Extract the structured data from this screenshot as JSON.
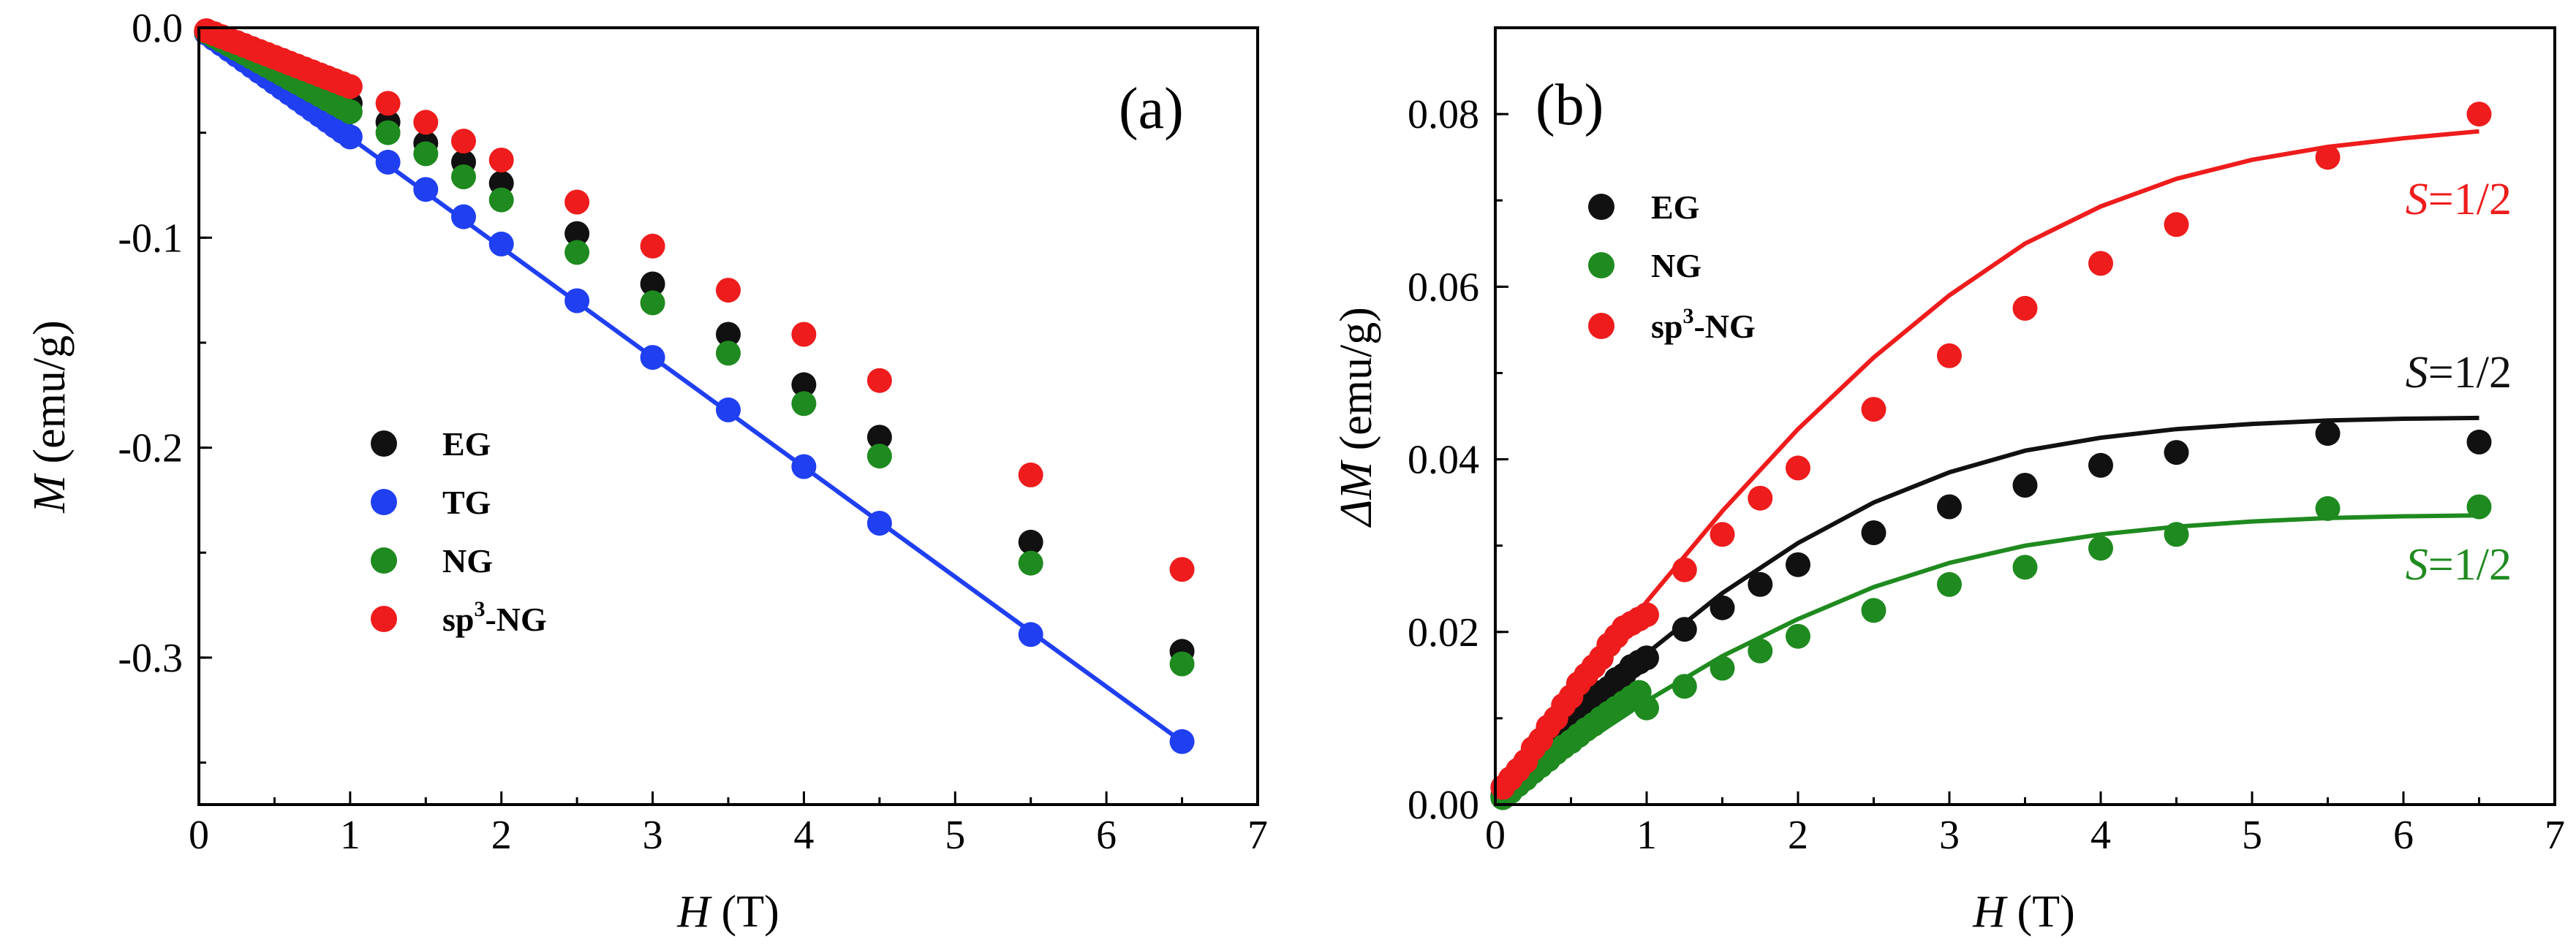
{
  "colors": {
    "EG": "#111111",
    "TG": "#1f3ff0",
    "NG": "#1f8a1f",
    "sp3-NG": "#ee1c1c"
  },
  "chart_data": [
    {
      "type": "scatter",
      "panel": "(a)",
      "xlabel_var": "H",
      "xlabel_unit": " (T)",
      "ylabel_var": "M",
      "ylabel_unit": " (emu/g)",
      "xlim": [
        0,
        7
      ],
      "ylim": [
        -0.37,
        0
      ],
      "xticks": [
        0,
        1,
        2,
        3,
        4,
        5,
        6,
        7
      ],
      "xtick_labels": [
        "0",
        "1",
        "2",
        "3",
        "4",
        "5",
        "6",
        "7"
      ],
      "yticks": [
        0,
        -0.1,
        -0.2,
        -0.3
      ],
      "ytick_labels": [
        "0.0",
        "-0.1",
        "-0.2",
        "-0.3"
      ],
      "legend": {
        "placement": "lower-left",
        "entries": [
          {
            "key": "EG",
            "label": "EG"
          },
          {
            "key": "TG",
            "label": "TG"
          },
          {
            "key": "NG",
            "label": "NG"
          },
          {
            "key": "sp3-NG",
            "label_pre": "sp",
            "label_sup": "3",
            "label_post": "-NG"
          }
        ]
      },
      "x": [
        0.05,
        0.1,
        0.15,
        0.2,
        0.25,
        0.3,
        0.35,
        0.4,
        0.45,
        0.5,
        0.55,
        0.6,
        0.65,
        0.7,
        0.75,
        0.8,
        0.85,
        0.9,
        0.95,
        1.0,
        1.25,
        1.5,
        1.75,
        2.0,
        2.5,
        3.0,
        3.5,
        4.0,
        4.5,
        5.5,
        6.5
      ],
      "series": [
        {
          "name": "EG",
          "key": "EG",
          "values": [
            -0.0018,
            -0.0036,
            -0.0054,
            -0.0072,
            -0.009,
            -0.0108,
            -0.0126,
            -0.0144,
            -0.0162,
            -0.018,
            -0.0198,
            -0.0216,
            -0.0234,
            -0.0252,
            -0.027,
            -0.0288,
            -0.0306,
            -0.0324,
            -0.0342,
            -0.036,
            -0.045,
            -0.055,
            -0.064,
            -0.074,
            -0.098,
            -0.122,
            -0.146,
            -0.17,
            -0.195,
            -0.245,
            -0.297
          ]
        },
        {
          "name": "TG",
          "key": "TG",
          "values": [
            -0.0026,
            -0.0052,
            -0.0078,
            -0.0104,
            -0.013,
            -0.0156,
            -0.0182,
            -0.0208,
            -0.0234,
            -0.026,
            -0.0286,
            -0.0312,
            -0.0338,
            -0.0364,
            -0.039,
            -0.0416,
            -0.0442,
            -0.0468,
            -0.0494,
            -0.052,
            -0.064,
            -0.077,
            -0.09,
            -0.103,
            -0.13,
            -0.157,
            -0.182,
            -0.209,
            -0.236,
            -0.289,
            -0.34
          ]
        },
        {
          "name": "NG",
          "key": "NG",
          "values": [
            -0.002,
            -0.004,
            -0.006,
            -0.008,
            -0.01,
            -0.012,
            -0.014,
            -0.016,
            -0.018,
            -0.02,
            -0.022,
            -0.024,
            -0.026,
            -0.028,
            -0.03,
            -0.032,
            -0.034,
            -0.036,
            -0.038,
            -0.04,
            -0.05,
            -0.06,
            -0.071,
            -0.082,
            -0.107,
            -0.131,
            -0.155,
            -0.179,
            -0.204,
            -0.255,
            -0.303
          ]
        },
        {
          "name": "sp3-NG",
          "key": "sp3-NG",
          "values": [
            -0.0014,
            -0.0028,
            -0.0042,
            -0.0056,
            -0.007,
            -0.0084,
            -0.0098,
            -0.0112,
            -0.0126,
            -0.014,
            -0.0154,
            -0.0168,
            -0.0182,
            -0.0196,
            -0.021,
            -0.0224,
            -0.0238,
            -0.0252,
            -0.0266,
            -0.028,
            -0.036,
            -0.045,
            -0.054,
            -0.063,
            -0.083,
            -0.104,
            -0.125,
            -0.146,
            -0.168,
            -0.213,
            -0.258
          ]
        }
      ],
      "fit_lines": [
        {
          "series": "TG",
          "x": [
            0,
            6.5
          ],
          "y": [
            0,
            -0.34
          ]
        }
      ]
    },
    {
      "type": "scatter",
      "panel": "(b)",
      "xlabel_var": "H",
      "xlabel_unit": " (T)",
      "ylabel_var": "ΔM",
      "ylabel_unit": " (emu/g)",
      "xlim": [
        0,
        7
      ],
      "ylim": [
        0,
        0.09
      ],
      "xticks": [
        0,
        1,
        2,
        3,
        4,
        5,
        6,
        7
      ],
      "xtick_labels": [
        "0",
        "1",
        "2",
        "3",
        "4",
        "5",
        "6",
        "7"
      ],
      "yticks": [
        0,
        0.02,
        0.04,
        0.06,
        0.08
      ],
      "ytick_labels": [
        "0.00",
        "0.02",
        "0.04",
        "0.06",
        "0.08"
      ],
      "legend": {
        "placement": "upper-left",
        "entries": [
          {
            "key": "EG",
            "label": "EG"
          },
          {
            "key": "NG",
            "label": "NG"
          },
          {
            "key": "sp3-NG",
            "label_pre": "sp",
            "label_sup": "3",
            "label_post": "-NG"
          }
        ]
      },
      "x": [
        0.05,
        0.1,
        0.15,
        0.2,
        0.25,
        0.3,
        0.35,
        0.4,
        0.45,
        0.5,
        0.55,
        0.6,
        0.65,
        0.7,
        0.75,
        0.8,
        0.85,
        0.9,
        0.95,
        1.0,
        1.25,
        1.5,
        1.75,
        2.0,
        2.5,
        3.0,
        3.5,
        4.0,
        4.5,
        5.5,
        6.5
      ],
      "series": [
        {
          "name": "EG",
          "key": "EG",
          "values": [
            0.001,
            0.002,
            0.003,
            0.004,
            0.005,
            0.006,
            0.007,
            0.008,
            0.009,
            0.0095,
            0.0105,
            0.011,
            0.012,
            0.013,
            0.0135,
            0.0145,
            0.015,
            0.016,
            0.0165,
            0.017,
            0.0203,
            0.0228,
            0.0255,
            0.0278,
            0.0315,
            0.0345,
            0.037,
            0.0393,
            0.0408,
            0.043,
            0.042
          ]
        },
        {
          "name": "NG",
          "key": "NG",
          "values": [
            0.0008,
            0.0015,
            0.0023,
            0.003,
            0.0038,
            0.0045,
            0.0052,
            0.006,
            0.0067,
            0.0073,
            0.008,
            0.0087,
            0.0093,
            0.01,
            0.0106,
            0.0112,
            0.0118,
            0.0124,
            0.013,
            0.0112,
            0.0137,
            0.0158,
            0.0178,
            0.0195,
            0.0225,
            0.0255,
            0.0275,
            0.0297,
            0.0313,
            0.0343,
            0.0345
          ]
        },
        {
          "name": "sp3-NG",
          "key": "sp3-NG",
          "values": [
            0.002,
            0.003,
            0.004,
            0.005,
            0.0065,
            0.0075,
            0.009,
            0.01,
            0.0115,
            0.0125,
            0.014,
            0.015,
            0.016,
            0.017,
            0.0185,
            0.0195,
            0.0205,
            0.021,
            0.0215,
            0.022,
            0.0272,
            0.0313,
            0.0355,
            0.039,
            0.0458,
            0.052,
            0.0575,
            0.0627,
            0.0672,
            0.075,
            0.08
          ]
        }
      ],
      "fit_lines": [
        {
          "series": "sp3-NG",
          "x": [
            0,
            0.5,
            1,
            1.5,
            2,
            2.5,
            3,
            3.5,
            4,
            4.5,
            5,
            5.5,
            6,
            6.5
          ],
          "y": [
            0,
            0.012,
            0.0235,
            0.034,
            0.0435,
            0.0518,
            0.059,
            0.065,
            0.0693,
            0.0725,
            0.0747,
            0.0762,
            0.0772,
            0.078
          ]
        },
        {
          "series": "EG",
          "x": [
            0,
            0.5,
            1,
            1.5,
            2,
            2.5,
            3,
            3.5,
            4,
            4.5,
            5,
            5.5,
            6,
            6.5
          ],
          "y": [
            0,
            0.009,
            0.0175,
            0.0245,
            0.0303,
            0.035,
            0.0385,
            0.041,
            0.0425,
            0.0435,
            0.0441,
            0.0445,
            0.0447,
            0.0448
          ]
        },
        {
          "series": "NG",
          "x": [
            0,
            0.5,
            1,
            1.5,
            2,
            2.5,
            3,
            3.5,
            4,
            4.5,
            5,
            5.5,
            6,
            6.5
          ],
          "y": [
            0,
            0.0062,
            0.012,
            0.0172,
            0.0215,
            0.0252,
            0.028,
            0.03,
            0.0313,
            0.0322,
            0.0328,
            0.0332,
            0.0334,
            0.0335
          ]
        }
      ],
      "fit_labels": [
        {
          "series": "sp3-NG",
          "var": "S",
          "value": "=1/2"
        },
        {
          "series": "EG",
          "var": "S",
          "value": "=1/2"
        },
        {
          "series": "NG",
          "var": "S",
          "value": "=1/2"
        }
      ]
    }
  ]
}
